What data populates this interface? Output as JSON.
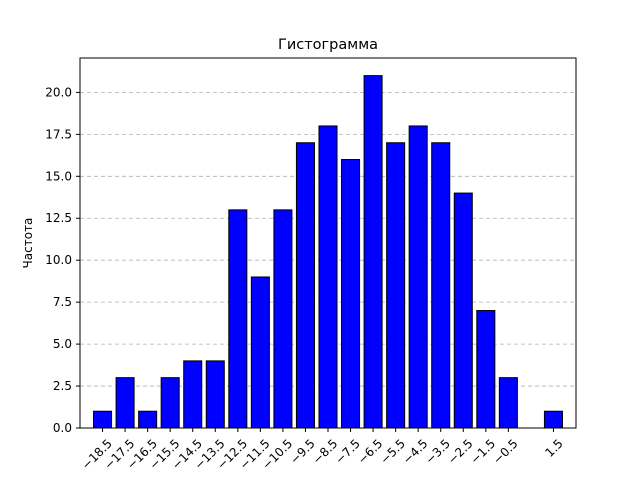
{
  "chart_data": {
    "type": "bar",
    "title": "Гистограмма",
    "xlabel": "",
    "ylabel": "Частота",
    "x": [
      -18.5,
      -17.5,
      -16.5,
      -15.5,
      -14.5,
      -13.5,
      -12.5,
      -11.5,
      -10.5,
      -9.5,
      -8.5,
      -7.5,
      -6.5,
      -5.5,
      -4.5,
      -3.5,
      -2.5,
      -1.5,
      -0.5,
      0.5,
      1.5
    ],
    "values": [
      1,
      3,
      1,
      3,
      4,
      4,
      13,
      9,
      13,
      17,
      18,
      16,
      21,
      17,
      18,
      17,
      14,
      7,
      3,
      0,
      1
    ],
    "tick_labels": [
      "−18.5",
      "−17.5",
      "−16.5",
      "−15.5",
      "−14.5",
      "−13.5",
      "−12.5",
      "−11.5",
      "−10.5",
      "−9.5",
      "−8.5",
      "−7.5",
      "−6.5",
      "−5.5",
      "−4.5",
      "−3.5",
      "−2.5",
      "−1.5",
      "−0.5",
      "",
      "1.5"
    ],
    "yticks": [
      0.0,
      2.5,
      5.0,
      7.5,
      10.0,
      12.5,
      15.0,
      17.5,
      20.0
    ],
    "ytick_labels": [
      "0.0",
      "2.5",
      "5.0",
      "7.5",
      "10.0",
      "12.5",
      "15.0",
      "17.5",
      "20.0"
    ],
    "ylim": [
      0,
      22.05
    ],
    "xlim": [
      -19.5,
      2.5
    ],
    "grid": "y-dashed",
    "colors": {
      "bar_fill": "#0000ff",
      "bar_edge": "#000000",
      "grid": "#b0b0b0"
    }
  }
}
